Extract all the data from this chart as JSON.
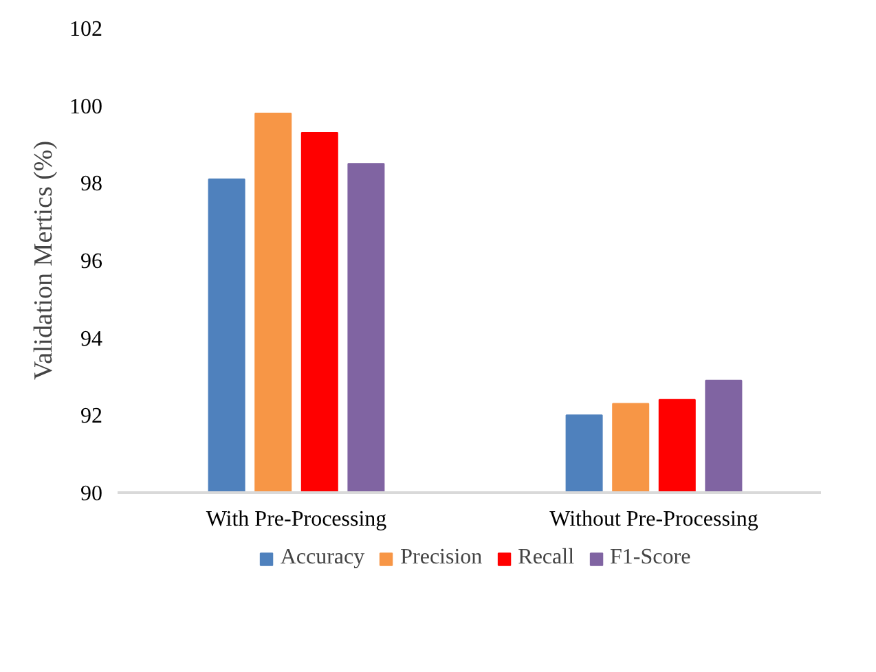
{
  "chart_data": {
    "type": "bar",
    "ylabel": "Validation Mertics (%)",
    "categories": [
      "With Pre-Processing",
      "Without Pre-Processing"
    ],
    "series": [
      {
        "name": "Accuracy",
        "color": "#4f81bd",
        "values": [
          98.1,
          92.0
        ]
      },
      {
        "name": "Precision",
        "color": "#f79646",
        "values": [
          99.8,
          92.3
        ]
      },
      {
        "name": "Recall",
        "color": "#ff0000",
        "values": [
          99.3,
          92.4
        ]
      },
      {
        "name": "F1-Score",
        "color": "#8064a2",
        "values": [
          98.5,
          92.9
        ]
      }
    ],
    "ylim": [
      90,
      102
    ],
    "yticks": [
      90,
      92,
      94,
      96,
      98,
      100,
      102
    ],
    "grid": false,
    "legend": "bottom"
  }
}
